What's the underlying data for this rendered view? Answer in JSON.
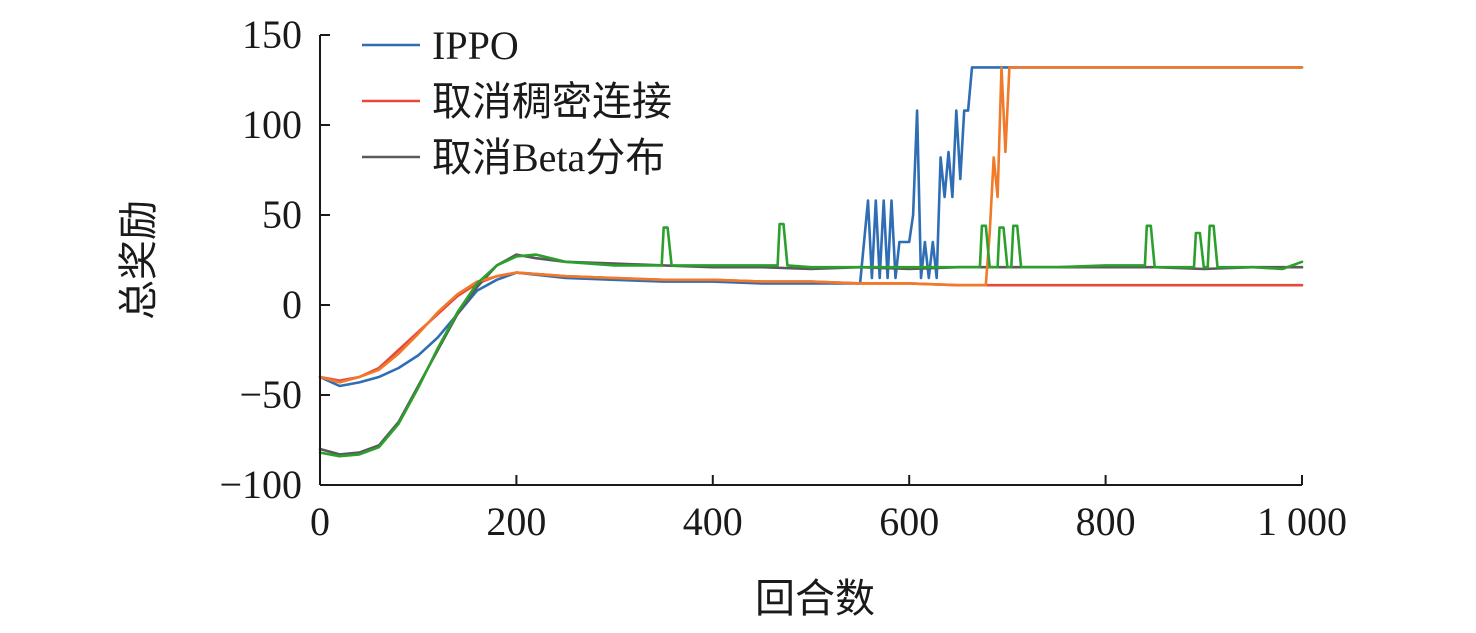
{
  "chart_data": {
    "type": "line",
    "xlabel": "回合数",
    "ylabel": "总奖励",
    "xlim": [
      0,
      1000
    ],
    "ylim": [
      -100,
      150
    ],
    "xticks": [
      0,
      200,
      400,
      600,
      800,
      1000
    ],
    "xtick_labels": [
      "0",
      "200",
      "400",
      "600",
      "800",
      "1 000"
    ],
    "yticks": [
      -100,
      -50,
      0,
      50,
      100,
      150
    ],
    "ytick_labels": [
      "−100",
      "−50",
      "0",
      "50",
      "100",
      "150"
    ],
    "legend_position": "top-left",
    "grid": false,
    "series": [
      {
        "name": "IPPO",
        "color": "#2f6db5",
        "x": [
          0,
          20,
          40,
          60,
          80,
          100,
          120,
          140,
          160,
          180,
          200,
          250,
          300,
          350,
          400,
          450,
          500,
          550,
          558,
          562,
          566,
          570,
          574,
          578,
          582,
          586,
          590,
          600,
          604,
          608,
          612,
          616,
          620,
          624,
          628,
          632,
          636,
          640,
          644,
          648,
          652,
          656,
          660,
          664,
          670,
          680,
          700,
          800,
          900,
          1000
        ],
        "values": [
          -40,
          -45,
          -43,
          -40,
          -35,
          -28,
          -18,
          -5,
          8,
          14,
          18,
          15,
          14,
          13,
          13,
          12,
          12,
          12,
          58,
          15,
          58,
          15,
          58,
          15,
          58,
          15,
          35,
          35,
          50,
          108,
          15,
          35,
          15,
          35,
          15,
          82,
          60,
          85,
          60,
          108,
          70,
          108,
          108,
          132,
          132,
          132,
          132,
          132,
          132,
          132
        ]
      },
      {
        "name": "取消稠密连接",
        "color": "#e8473a",
        "x": [
          0,
          20,
          40,
          60,
          80,
          100,
          120,
          140,
          160,
          180,
          200,
          250,
          300,
          350,
          400,
          450,
          500,
          550,
          600,
          650,
          680,
          1000
        ],
        "values": [
          -40,
          -42,
          -40,
          -35,
          -25,
          -15,
          -5,
          5,
          12,
          16,
          18,
          16,
          15,
          14,
          14,
          13,
          13,
          12,
          12,
          11,
          11,
          11
        ]
      },
      {
        "name": "取消Beta分布",
        "color": "#5a5a5a",
        "x": [
          0,
          20,
          40,
          60,
          80,
          100,
          120,
          140,
          160,
          180,
          200,
          220,
          250,
          300,
          350,
          400,
          450,
          500,
          550,
          600,
          650,
          700,
          750,
          800,
          850,
          900,
          950,
          1000
        ],
        "values": [
          -80,
          -83,
          -82,
          -78,
          -65,
          -45,
          -25,
          -5,
          10,
          22,
          28,
          26,
          24,
          23,
          22,
          21,
          21,
          20,
          21,
          20,
          21,
          21,
          21,
          21,
          21,
          20,
          21,
          21
        ]
      },
      {
        "name": "",
        "color": "#f07a2a",
        "x": [
          0,
          20,
          40,
          60,
          80,
          100,
          120,
          140,
          160,
          180,
          200,
          250,
          300,
          350,
          400,
          450,
          500,
          550,
          600,
          650,
          678,
          682,
          686,
          690,
          694,
          698,
          702,
          706,
          710,
          800,
          900,
          1000
        ],
        "values": [
          -40,
          -43,
          -40,
          -36,
          -27,
          -16,
          -4,
          6,
          13,
          16,
          18,
          16,
          15,
          14,
          14,
          13,
          13,
          12,
          12,
          11,
          11,
          40,
          82,
          60,
          132,
          85,
          132,
          132,
          132,
          132,
          132,
          132
        ]
      },
      {
        "name": "",
        "color": "#2ca02c",
        "x": [
          0,
          20,
          40,
          60,
          80,
          100,
          120,
          140,
          160,
          180,
          200,
          220,
          250,
          300,
          348,
          350,
          354,
          358,
          400,
          466,
          468,
          472,
          476,
          500,
          550,
          600,
          650,
          672,
          674,
          678,
          682,
          690,
          692,
          696,
          700,
          704,
          706,
          710,
          714,
          750,
          800,
          840,
          842,
          846,
          850,
          890,
          892,
          896,
          900,
          904,
          906,
          910,
          914,
          950,
          980,
          1000
        ],
        "values": [
          -82,
          -84,
          -83,
          -79,
          -66,
          -46,
          -24,
          -4,
          12,
          22,
          27,
          28,
          24,
          22,
          22,
          43,
          43,
          22,
          22,
          22,
          45,
          45,
          22,
          21,
          21,
          21,
          21,
          21,
          44,
          44,
          21,
          21,
          43,
          43,
          21,
          21,
          44,
          44,
          21,
          21,
          22,
          22,
          44,
          44,
          21,
          21,
          40,
          40,
          21,
          21,
          44,
          44,
          21,
          21,
          20,
          24
        ]
      }
    ]
  }
}
